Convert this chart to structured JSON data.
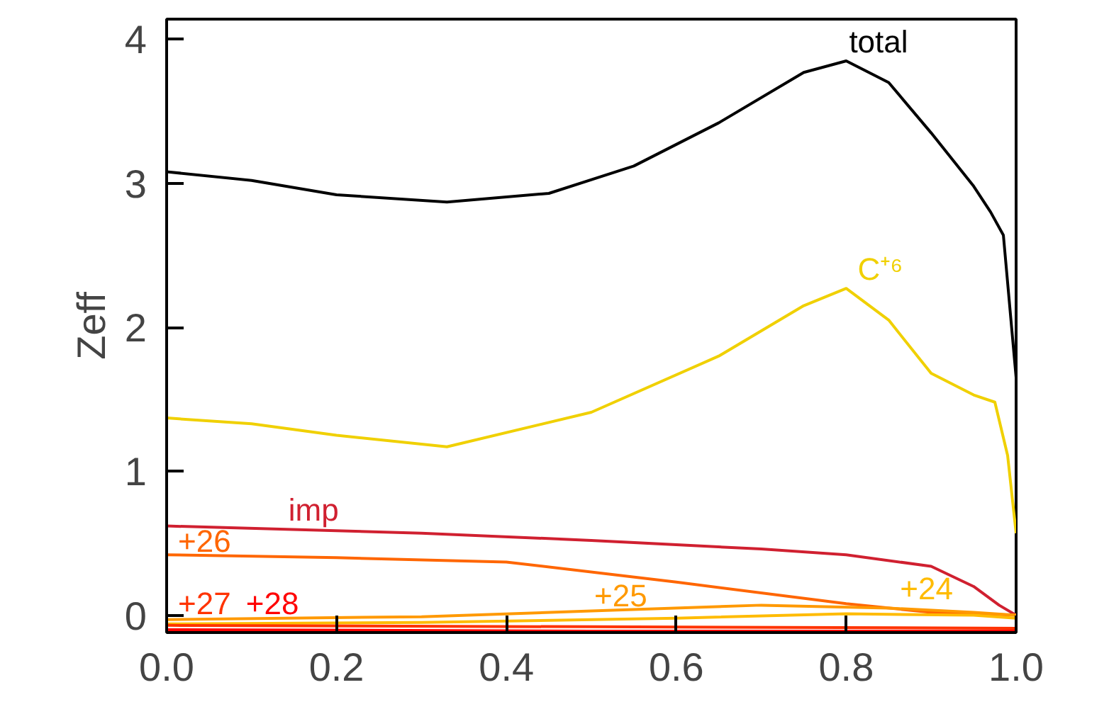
{
  "chart_data": {
    "type": "line",
    "ylabel": "Zeff",
    "xlim": [
      0,
      1
    ],
    "ylim": [
      -0.12,
      4.14
    ],
    "xticks": [
      {
        "value": 0,
        "label": "0.0"
      },
      0.2,
      0.4,
      0.6,
      0.8,
      {
        "value": 1,
        "label": "1.0"
      }
    ],
    "yticks": [
      0,
      1,
      2,
      3,
      4
    ],
    "grid": false,
    "marker": "none",
    "line_style": "solid",
    "series": [
      {
        "color": "#000000",
        "x": [
          0,
          0.1,
          0.2,
          0.33,
          0.45,
          0.55,
          0.65,
          0.75,
          0.8,
          0.85,
          0.9,
          0.95,
          0.97,
          0.985,
          1.0
        ],
        "values": [
          3.08,
          3.02,
          2.92,
          2.87,
          2.93,
          3.12,
          3.42,
          3.77,
          3.85,
          3.7,
          3.35,
          2.98,
          2.8,
          2.64,
          1.65
        ]
      },
      {
        "color": "#f0d000",
        "x": [
          0,
          0.1,
          0.2,
          0.33,
          0.5,
          0.65,
          0.75,
          0.8,
          0.85,
          0.9,
          0.95,
          0.975,
          0.99,
          1.0
        ],
        "values": [
          1.37,
          1.33,
          1.25,
          1.17,
          1.41,
          1.8,
          2.15,
          2.27,
          2.05,
          1.68,
          1.53,
          1.48,
          1.11,
          0.57
        ]
      },
      {
        "color": "#d02030",
        "x": [
          0,
          0.3,
          0.5,
          0.7,
          0.8,
          0.9,
          0.95,
          0.98,
          1.0
        ],
        "values": [
          0.62,
          0.57,
          0.52,
          0.46,
          0.42,
          0.34,
          0.2,
          0.07,
          0.0
        ]
      },
      {
        "color": "#ff6600",
        "x": [
          0,
          0.2,
          0.4,
          0.6,
          0.8,
          0.9,
          1.0
        ],
        "values": [
          0.42,
          0.4,
          0.37,
          0.23,
          0.08,
          0.02,
          0.0
        ]
      },
      {
        "color": "#ff9900",
        "x": [
          0,
          0.3,
          0.5,
          0.7,
          0.85,
          0.95,
          1.0
        ],
        "values": [
          -0.03,
          -0.01,
          0.03,
          0.07,
          0.05,
          0.02,
          0.0
        ]
      },
      {
        "color": "#ffbb00",
        "x": [
          0,
          0.3,
          0.6,
          0.8,
          0.95,
          1.0
        ],
        "values": [
          -0.06,
          -0.05,
          -0.02,
          0.01,
          0.0,
          -0.02
        ]
      },
      {
        "color": "#ff3300",
        "x": [
          0,
          0.5,
          1.0
        ],
        "values": [
          -0.07,
          -0.08,
          -0.09
        ]
      },
      {
        "color": "#ff0000",
        "x": [
          0,
          0.5,
          1.0
        ],
        "values": [
          -0.1,
          -0.11,
          -0.11
        ]
      }
    ],
    "annotations": [
      {
        "text": "total",
        "x": 0.8,
        "y": 3.85
      },
      {
        "text": "C⁺⁶",
        "x": 0.81,
        "y": 2.27
      },
      {
        "text": "imp",
        "x": 0.14,
        "y": 0.6
      },
      {
        "text": "+26",
        "x": 0.01,
        "y": 0.43
      },
      {
        "text": "+25",
        "x": 0.5,
        "y": 0.05
      },
      {
        "text": "+24",
        "x": 0.86,
        "y": 0.1
      },
      {
        "text": "+27",
        "x": 0.01,
        "y": 0.0
      },
      {
        "text": "+28",
        "x": 0.09,
        "y": 0.0
      }
    ]
  }
}
